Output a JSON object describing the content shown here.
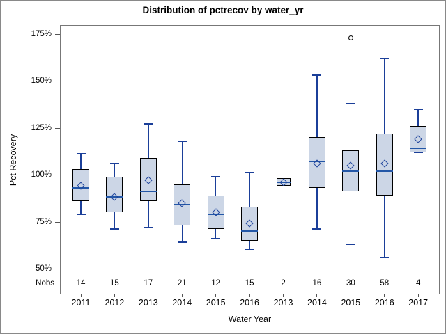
{
  "title": "Distribution of pctrecov by water_yr",
  "chart_data": {
    "type": "boxplot",
    "title": "Distribution of pctrecov by water_yr",
    "xlabel": "Water Year",
    "ylabel": "Pct Recovery",
    "nobs_label": "Nobs",
    "ylim": [
      36.3,
      179.7
    ],
    "yticks": [
      {
        "v": 50,
        "label": "50%"
      },
      {
        "v": 75,
        "label": "75%"
      },
      {
        "v": 100,
        "label": "100%"
      },
      {
        "v": 125,
        "label": "125%"
      },
      {
        "v": 150,
        "label": "150%"
      },
      {
        "v": 175,
        "label": "175%"
      }
    ],
    "reference_line": 100,
    "grid": false,
    "categories": [
      "2011",
      "2012",
      "2013",
      "2014",
      "2015",
      "2016",
      "2013",
      "2014",
      "2015",
      "2016",
      "2017"
    ],
    "series": [
      {
        "category": "2011",
        "nobs": 14,
        "whisker_low": 79,
        "q1": 86,
        "median": 93,
        "mean": 94,
        "q3": 103,
        "whisker_high": 111,
        "outliers": []
      },
      {
        "category": "2012",
        "nobs": 15,
        "whisker_low": 71,
        "q1": 80,
        "median": 88,
        "mean": 88,
        "q3": 99,
        "whisker_high": 106,
        "outliers": []
      },
      {
        "category": "2013",
        "nobs": 17,
        "whisker_low": 72,
        "q1": 86,
        "median": 91,
        "mean": 97,
        "q3": 109,
        "whisker_high": 127,
        "outliers": []
      },
      {
        "category": "2014",
        "nobs": 21,
        "whisker_low": 64,
        "q1": 73,
        "median": 84,
        "mean": 85,
        "q3": 95,
        "whisker_high": 118,
        "outliers": []
      },
      {
        "category": "2015",
        "nobs": 12,
        "whisker_low": 66,
        "q1": 71,
        "median": 79,
        "mean": 80,
        "q3": 89,
        "whisker_high": 99,
        "outliers": []
      },
      {
        "category": "2016",
        "nobs": 15,
        "whisker_low": 60,
        "q1": 65,
        "median": 70,
        "mean": 74,
        "q3": 83,
        "whisker_high": 101,
        "outliers": []
      },
      {
        "category": "2013",
        "nobs": 2,
        "whisker_low": 94,
        "q1": 94,
        "median": 96,
        "mean": 96,
        "q3": 98,
        "whisker_high": 98,
        "outliers": []
      },
      {
        "category": "2014",
        "nobs": 16,
        "whisker_low": 71,
        "q1": 93,
        "median": 107,
        "mean": 106,
        "q3": 120,
        "whisker_high": 153,
        "outliers": []
      },
      {
        "category": "2015",
        "nobs": 30,
        "whisker_low": 63,
        "q1": 91,
        "median": 102,
        "mean": 105,
        "q3": 113,
        "whisker_high": 138,
        "outliers": [
          173
        ]
      },
      {
        "category": "2016",
        "nobs": 58,
        "whisker_low": 56,
        "q1": 89,
        "median": 102,
        "mean": 106,
        "q3": 122,
        "whisker_high": 162,
        "outliers": []
      },
      {
        "category": "2017",
        "nobs": 4,
        "whisker_low": 112,
        "q1": 112,
        "median": 114,
        "mean": 119,
        "q3": 126,
        "whisker_high": 135,
        "outliers": []
      }
    ],
    "colors": {
      "box_fill": "#ccd6e6",
      "box_border": "#000000",
      "whisker": "#1b3f99",
      "median": "#2357a7",
      "mean_marker": "#1f449c",
      "reference_line": "#a9a9a9",
      "outlier": "#000000"
    }
  }
}
